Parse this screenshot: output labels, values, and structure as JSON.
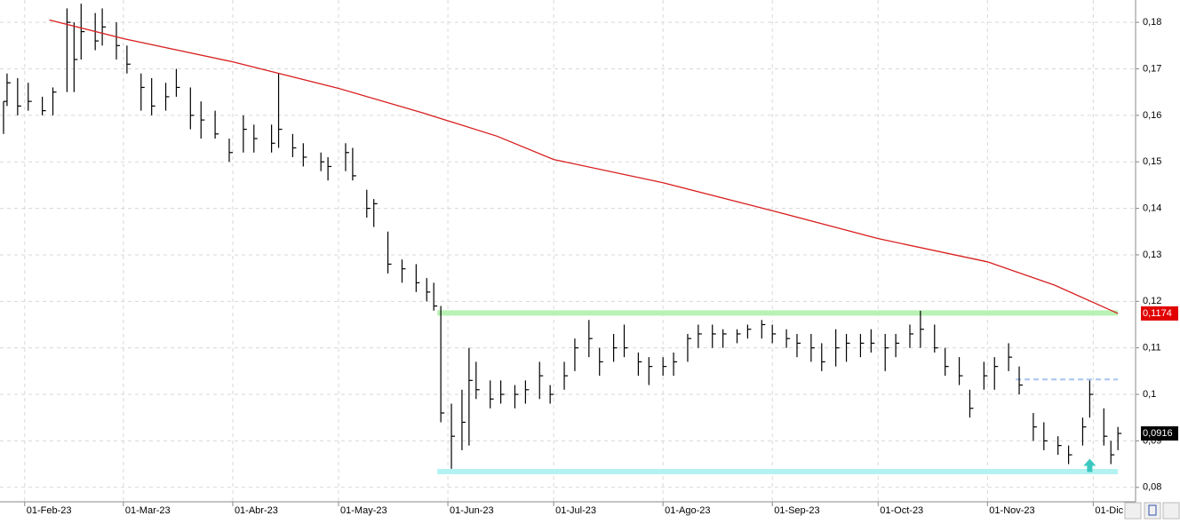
{
  "chart_data": {
    "type": "ohlc",
    "x": [
      "2023-01-26",
      "2023-01-27",
      "2023-01-30",
      "2023-02-02",
      "2023-02-06",
      "2023-02-09",
      "2023-02-13",
      "2023-02-15",
      "2023-02-17",
      "2023-02-21",
      "2023-02-23",
      "2023-02-27",
      "2023-03-02",
      "2023-03-06",
      "2023-03-09",
      "2023-03-13",
      "2023-03-16",
      "2023-03-20",
      "2023-03-23",
      "2023-03-27",
      "2023-03-31",
      "2023-04-04",
      "2023-04-07",
      "2023-04-12",
      "2023-04-14",
      "2023-04-18",
      "2023-04-21",
      "2023-04-26",
      "2023-04-28",
      "2023-05-03",
      "2023-05-05",
      "2023-05-09",
      "2023-05-11",
      "2023-05-15",
      "2023-05-19",
      "2023-05-23",
      "2023-05-26",
      "2023-05-28",
      "2023-05-30",
      "2023-06-02",
      "2023-06-05",
      "2023-06-07",
      "2023-06-09",
      "2023-06-13",
      "2023-06-16",
      "2023-06-20",
      "2023-06-23",
      "2023-06-27",
      "2023-06-30",
      "2023-07-04",
      "2023-07-07",
      "2023-07-11",
      "2023-07-14",
      "2023-07-18",
      "2023-07-21",
      "2023-07-25",
      "2023-07-28",
      "2023-08-01",
      "2023-08-04",
      "2023-08-08",
      "2023-08-11",
      "2023-08-15",
      "2023-08-18",
      "2023-08-22",
      "2023-08-25",
      "2023-08-29",
      "2023-09-01",
      "2023-09-05",
      "2023-09-08",
      "2023-09-12",
      "2023-09-15",
      "2023-09-19",
      "2023-09-22",
      "2023-09-26",
      "2023-09-29",
      "2023-10-03",
      "2023-10-06",
      "2023-10-10",
      "2023-10-13",
      "2023-10-17",
      "2023-10-20",
      "2023-10-24",
      "2023-10-27",
      "2023-10-31",
      "2023-11-03",
      "2023-11-07",
      "2023-11-10",
      "2023-11-14",
      "2023-11-17",
      "2023-11-21",
      "2023-11-24",
      "2023-11-28",
      "2023-11-30",
      "2023-12-04",
      "2023-12-06",
      "2023-12-08"
    ],
    "high": [
      0.163,
      0.169,
      0.168,
      0.167,
      0.164,
      0.166,
      0.183,
      0.18,
      0.184,
      0.182,
      0.183,
      0.18,
      0.175,
      0.169,
      0.168,
      0.167,
      0.17,
      0.166,
      0.163,
      0.161,
      0.155,
      0.16,
      0.158,
      0.158,
      0.169,
      0.156,
      0.154,
      0.152,
      0.151,
      0.154,
      0.153,
      0.144,
      0.142,
      0.135,
      0.129,
      0.128,
      0.125,
      0.124,
      0.119,
      0.098,
      0.101,
      0.11,
      0.107,
      0.103,
      0.103,
      0.102,
      0.103,
      0.107,
      0.102,
      0.107,
      0.112,
      0.116,
      0.11,
      0.113,
      0.115,
      0.109,
      0.108,
      0.108,
      0.109,
      0.113,
      0.115,
      0.115,
      0.114,
      0.114,
      0.115,
      0.116,
      0.115,
      0.114,
      0.113,
      0.113,
      0.111,
      0.114,
      0.113,
      0.113,
      0.114,
      0.113,
      0.113,
      0.115,
      0.118,
      0.115,
      0.11,
      0.108,
      0.101,
      0.107,
      0.108,
      0.111,
      0.106,
      0.096,
      0.094,
      0.091,
      0.089,
      0.095,
      0.103,
      0.097,
      0.09,
      0.093
    ],
    "low": [
      0.156,
      0.162,
      0.16,
      0.161,
      0.16,
      0.16,
      0.165,
      0.165,
      0.172,
      0.174,
      0.175,
      0.172,
      0.169,
      0.161,
      0.16,
      0.161,
      0.164,
      0.157,
      0.155,
      0.155,
      0.15,
      0.152,
      0.152,
      0.152,
      0.153,
      0.151,
      0.149,
      0.148,
      0.146,
      0.148,
      0.146,
      0.138,
      0.136,
      0.126,
      0.124,
      0.122,
      0.12,
      0.118,
      0.094,
      0.084,
      0.088,
      0.089,
      0.099,
      0.097,
      0.098,
      0.097,
      0.098,
      0.099,
      0.098,
      0.101,
      0.105,
      0.108,
      0.104,
      0.107,
      0.108,
      0.104,
      0.102,
      0.104,
      0.104,
      0.107,
      0.11,
      0.11,
      0.11,
      0.111,
      0.112,
      0.112,
      0.111,
      0.11,
      0.108,
      0.107,
      0.105,
      0.106,
      0.107,
      0.108,
      0.109,
      0.105,
      0.108,
      0.11,
      0.11,
      0.109,
      0.104,
      0.102,
      0.095,
      0.101,
      0.101,
      0.105,
      0.1,
      0.09,
      0.088,
      0.087,
      0.085,
      0.089,
      0.095,
      0.089,
      0.085,
      0.088
    ],
    "close": [
      0.163,
      0.167,
      0.162,
      0.163,
      0.161,
      0.165,
      0.18,
      0.172,
      0.178,
      0.176,
      0.179,
      0.175,
      0.171,
      0.166,
      0.162,
      0.164,
      0.166,
      0.16,
      0.159,
      0.156,
      0.152,
      0.157,
      0.155,
      0.154,
      0.157,
      0.153,
      0.151,
      0.15,
      0.149,
      0.152,
      0.147,
      0.14,
      0.141,
      0.128,
      0.127,
      0.124,
      0.122,
      0.119,
      0.096,
      0.091,
      0.094,
      0.103,
      0.101,
      0.099,
      0.1,
      0.1,
      0.101,
      0.104,
      0.1,
      0.104,
      0.11,
      0.112,
      0.107,
      0.11,
      0.11,
      0.107,
      0.106,
      0.106,
      0.107,
      0.112,
      0.113,
      0.113,
      0.113,
      0.113,
      0.114,
      0.115,
      0.113,
      0.112,
      0.111,
      0.11,
      0.107,
      0.11,
      0.111,
      0.111,
      0.111,
      0.11,
      0.111,
      0.113,
      0.114,
      0.11,
      0.106,
      0.104,
      0.097,
      0.104,
      0.106,
      0.108,
      0.102,
      0.093,
      0.09,
      0.089,
      0.087,
      0.093,
      0.1,
      0.091,
      0.087,
      0.0916
    ],
    "bar_color": "#000000",
    "ma": {
      "color": "#d81e1e",
      "x": [
        "2023-02-08",
        "2023-03-01",
        "2023-04-01",
        "2023-05-01",
        "2023-05-25",
        "2023-06-15",
        "2023-07-01",
        "2023-08-01",
        "2023-09-01",
        "2023-10-01",
        "2023-11-01",
        "2023-11-20",
        "2023-12-08"
      ],
      "values": [
        0.1805,
        0.1765,
        0.1715,
        0.1658,
        0.1605,
        0.1555,
        0.1505,
        0.1455,
        0.1395,
        0.1335,
        0.1285,
        0.1235,
        0.1174
      ]
    },
    "levels": [
      {
        "value": 0.1175,
        "from": "2023-05-29",
        "to": "2023-12-08",
        "color": "#b8f2b4",
        "dashed": false
      },
      {
        "value": 0.0834,
        "from": "2023-05-29",
        "to": "2023-12-08",
        "color": "#b4f2f2",
        "dashed": false
      },
      {
        "value": 0.1032,
        "from": "2023-11-09",
        "to": "2023-12-08",
        "color": "#a8c4f0",
        "dashed": true
      }
    ],
    "arrow": {
      "x": "2023-11-30",
      "value": 0.0835,
      "color": "#3cc8c0"
    },
    "last_value_labels": [
      {
        "value": 0.1174,
        "label": "0,1174",
        "color": "#e00000"
      },
      {
        "value": 0.0916,
        "label": "0,0916",
        "color": "#000000"
      }
    ],
    "xlim": [
      "2023-01-25",
      "2023-12-13"
    ],
    "xticks": [
      {
        "value": "2023-02-01",
        "label": "01-Feb-23"
      },
      {
        "value": "2023-03-01",
        "label": "01-Mar-23"
      },
      {
        "value": "2023-04-01",
        "label": "01-Abr-23"
      },
      {
        "value": "2023-05-01",
        "label": "01-May-23"
      },
      {
        "value": "2023-06-01",
        "label": "01-Jun-23"
      },
      {
        "value": "2023-07-01",
        "label": "01-Jul-23"
      },
      {
        "value": "2023-08-01",
        "label": "01-Ago-23"
      },
      {
        "value": "2023-09-01",
        "label": "01-Sep-23"
      },
      {
        "value": "2023-10-01",
        "label": "01-Oct-23"
      },
      {
        "value": "2023-11-01",
        "label": "01-Nov-23"
      },
      {
        "value": "2023-12-01",
        "label": "01-Dic"
      }
    ],
    "ylim": [
      0.0769,
      0.1848
    ],
    "yticks": [
      {
        "value": 0.08,
        "label": "0,08"
      },
      {
        "value": 0.09,
        "label": "0,09"
      },
      {
        "value": 0.1,
        "label": "0,1"
      },
      {
        "value": 0.11,
        "label": "0,11"
      },
      {
        "value": 0.12,
        "label": "0,12"
      },
      {
        "value": 0.13,
        "label": "0,13"
      },
      {
        "value": 0.14,
        "label": "0,14"
      },
      {
        "value": 0.15,
        "label": "0,15"
      },
      {
        "value": 0.16,
        "label": "0,16"
      },
      {
        "value": 0.17,
        "label": "0,17"
      },
      {
        "value": 0.18,
        "label": "0,18"
      }
    ],
    "grid": true
  }
}
